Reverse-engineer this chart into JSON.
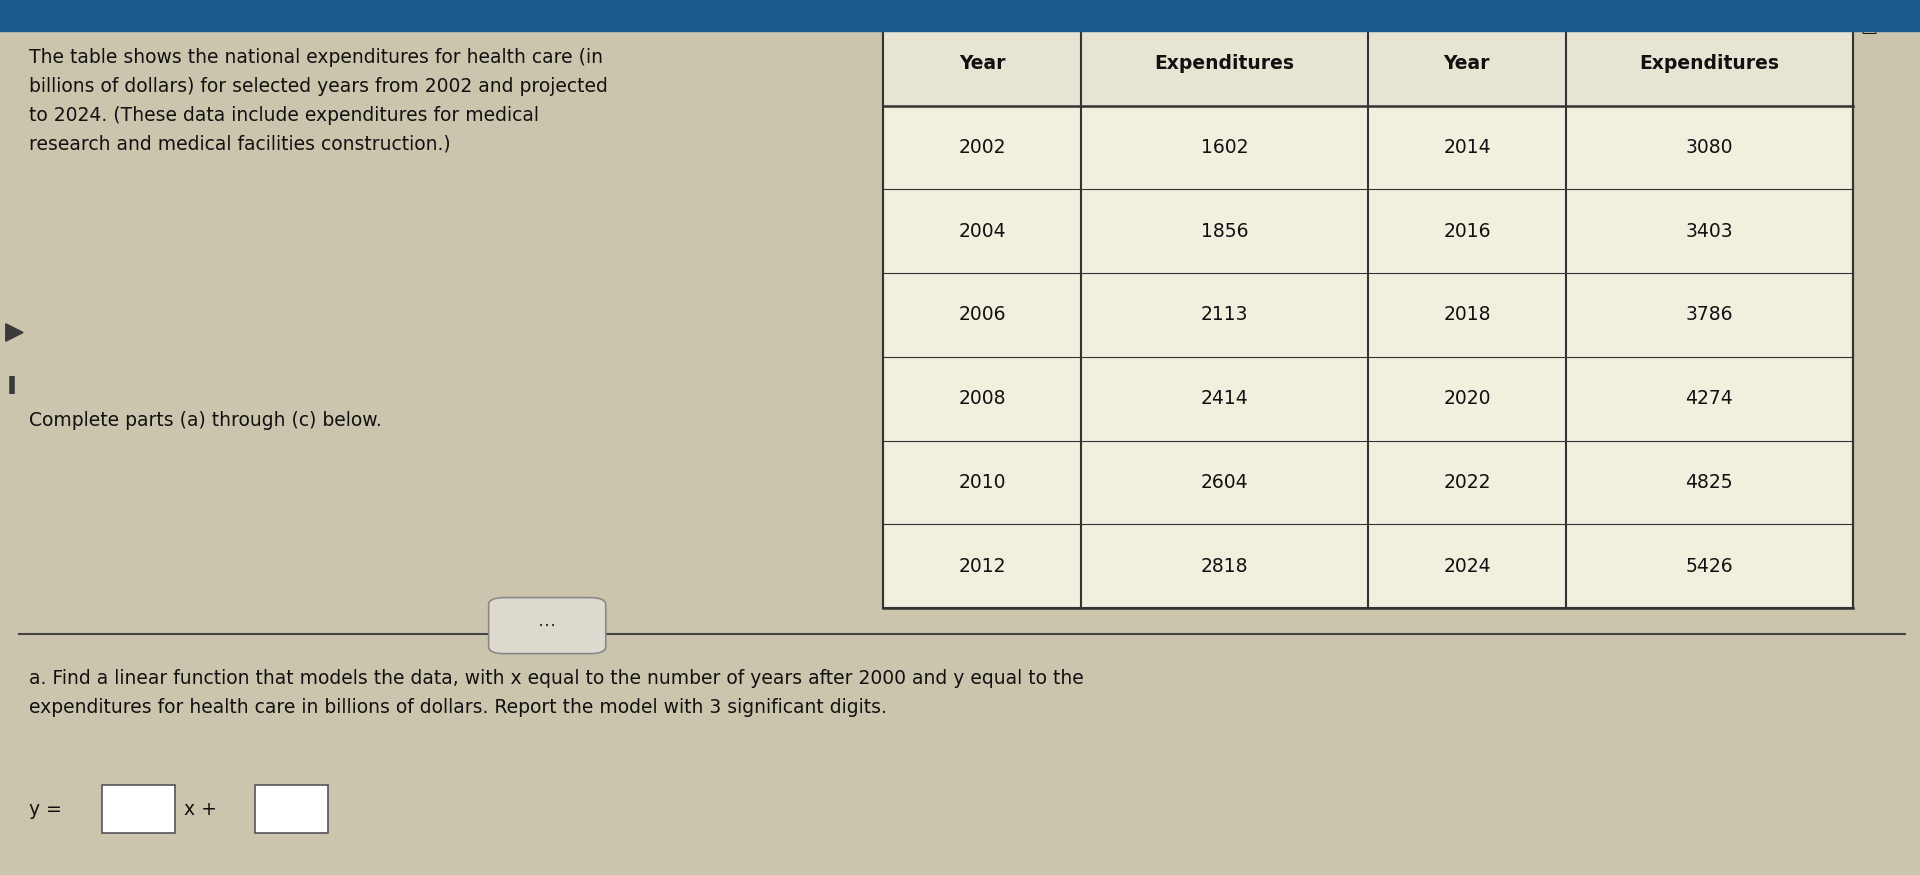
{
  "title_text": "The table shows the national expenditures for health care (in\nbillions of dollars) for selected years from 2002 and projected\nto 2024. (These data include expenditures for medical\nresearch and medical facilities construction.)",
  "subtitle_text": "Complete parts (a) through (c) below.",
  "table_headers": [
    "Year",
    "Expenditures",
    "Year",
    "Expenditures"
  ],
  "table_data": [
    [
      2002,
      1602,
      2014,
      3080
    ],
    [
      2004,
      1856,
      2016,
      3403
    ],
    [
      2006,
      2113,
      2018,
      3786
    ],
    [
      2008,
      2414,
      2020,
      4274
    ],
    [
      2010,
      2604,
      2022,
      4825
    ],
    [
      2012,
      2818,
      2024,
      5426
    ]
  ],
  "part_a_text": "a. Find a linear function that models the data, with x equal to the number of years after 2000 and y equal to the\nexpenditures for health care in billions of dollars. Report the model with 3 significant digits.",
  "bg_color": "#ccc5ae",
  "table_bg": "#f2efdf",
  "header_bg": "#e8e4d4",
  "text_color": "#111111",
  "top_bar_color": "#1a5a8a",
  "left_marker_color": "#3a3a3a",
  "separator_color": "#444444",
  "button_color": "#dedad0",
  "line_color": "#333333",
  "box_color": "#ffffff",
  "box_ec": "#555555"
}
